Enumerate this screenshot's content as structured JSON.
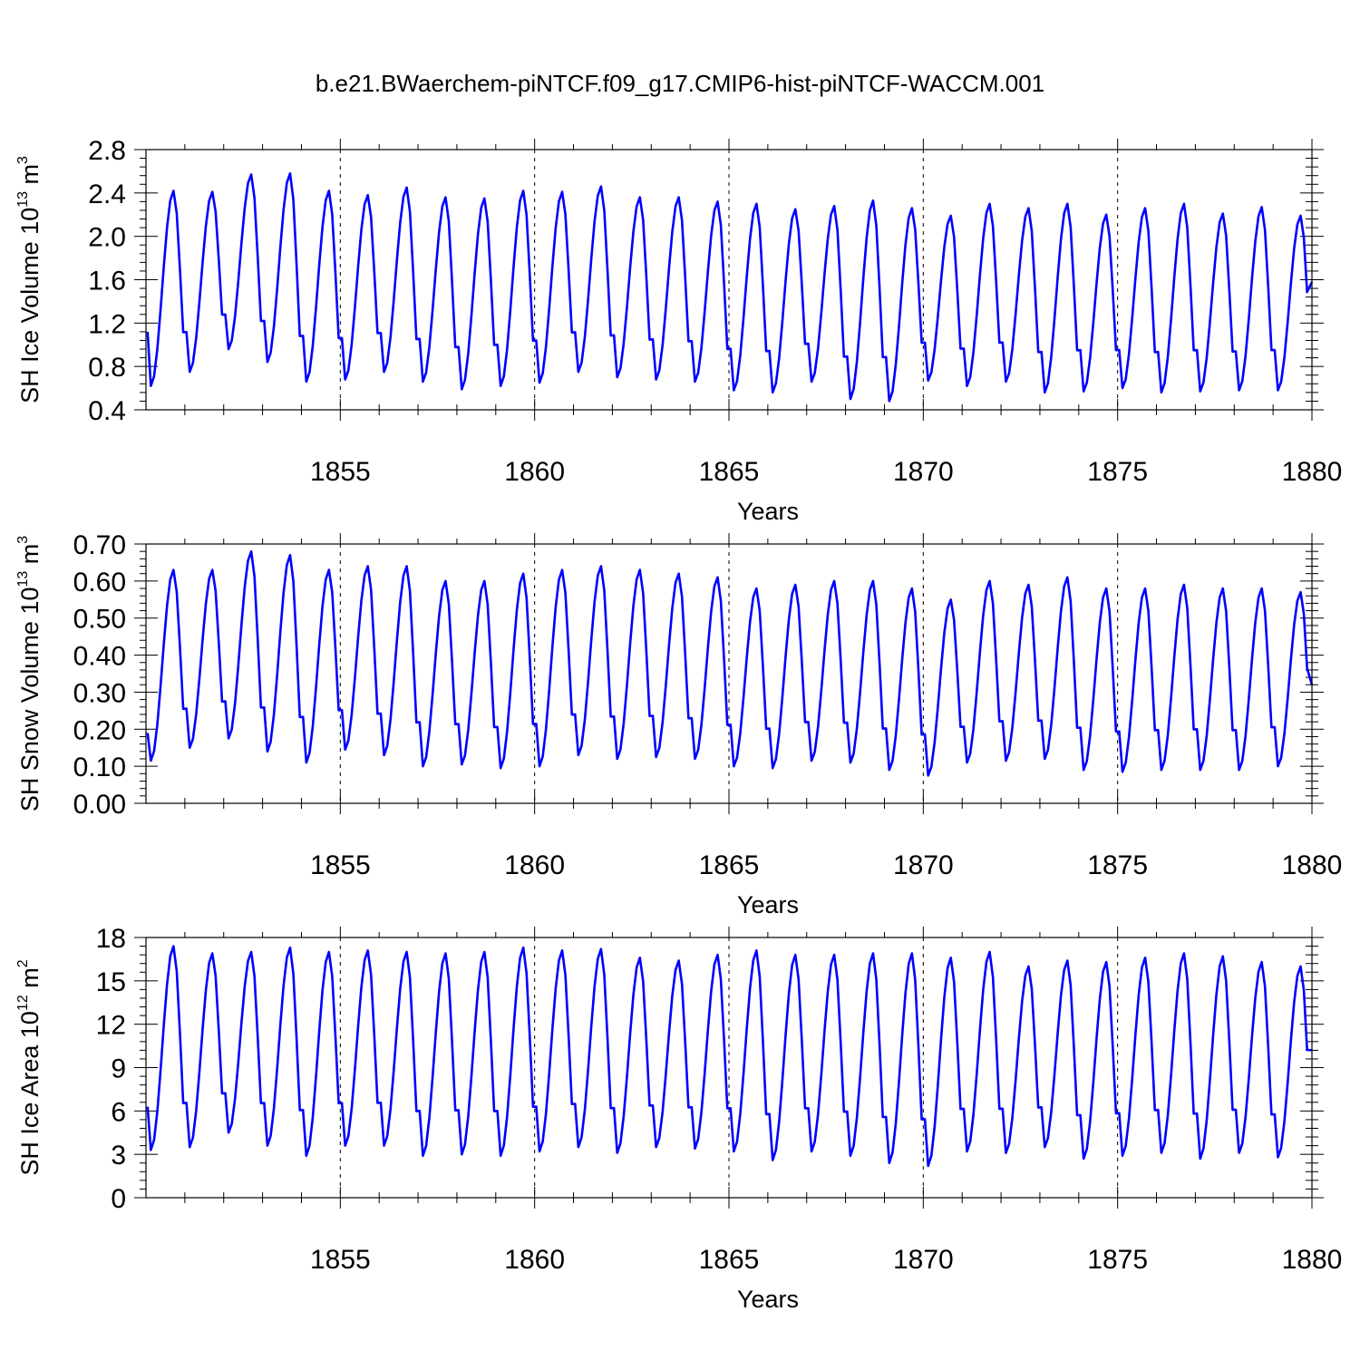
{
  "title": "b.e21.BWaerchem-piNTCF.f09_g17.CMIP6-hist-piNTCF-WACCM.001",
  "colors": {
    "line": "#0000ff",
    "axis": "#000000",
    "grid": "#000000"
  },
  "chart_data": [
    {
      "type": "line",
      "id": "ice-volume",
      "ylabel_main": "SH Ice Volume 10",
      "ylabel_exp": "13",
      "ylabel_unit": " m",
      "ylabel_unit_exp": "3",
      "xlabel": "Years",
      "xlim": [
        1850.0,
        1880.0
      ],
      "ylim": [
        0.4,
        2.8
      ],
      "xticks": [
        1855,
        1860,
        1865,
        1870,
        1875,
        1880
      ],
      "xtick_labels": [
        "1855",
        "1860",
        "1865",
        "1870",
        "1875",
        "1880"
      ],
      "yticks": [
        0.4,
        0.8,
        1.2,
        1.6,
        2.0,
        2.4,
        2.8
      ],
      "ytick_labels": [
        "0.4",
        "0.8",
        "1.2",
        "1.6",
        "2.0",
        "2.4",
        "2.8"
      ],
      "grid_x": [
        1855,
        1860,
        1865,
        1870,
        1875
      ],
      "seasonal": {
        "maxima": [
          2.42,
          2.41,
          2.57,
          2.58,
          2.42,
          2.38,
          2.45,
          2.36,
          2.35,
          2.42,
          2.41,
          2.46,
          2.36,
          2.36,
          2.32,
          2.3,
          2.25,
          2.28,
          2.33,
          2.26,
          2.19,
          2.3,
          2.26,
          2.3,
          2.2,
          2.26,
          2.3,
          2.21,
          2.27,
          2.19
        ],
        "minima": [
          0.62,
          0.75,
          0.96,
          0.84,
          0.66,
          0.68,
          0.75,
          0.66,
          0.59,
          0.62,
          0.65,
          0.75,
          0.7,
          0.68,
          0.66,
          0.58,
          0.56,
          0.66,
          0.5,
          0.48,
          0.67,
          0.62,
          0.66,
          0.56,
          0.57,
          0.6,
          0.56,
          0.57,
          0.58,
          0.58
        ],
        "start_value": 1.12,
        "end_value": 1.58
      }
    },
    {
      "type": "line",
      "id": "snow-volume",
      "ylabel_main": "SH Snow Volume 10",
      "ylabel_exp": "13",
      "ylabel_unit": " m",
      "ylabel_unit_exp": "3",
      "xlabel": "Years",
      "xlim": [
        1850.0,
        1880.0
      ],
      "ylim": [
        0.0,
        0.7
      ],
      "xticks": [
        1855,
        1860,
        1865,
        1870,
        1875,
        1880
      ],
      "xtick_labels": [
        "1855",
        "1860",
        "1865",
        "1870",
        "1875",
        "1880"
      ],
      "yticks": [
        0.0,
        0.1,
        0.2,
        0.3,
        0.4,
        0.5,
        0.6,
        0.7
      ],
      "ytick_labels": [
        "0.00",
        "0.10",
        "0.20",
        "0.30",
        "0.40",
        "0.50",
        "0.60",
        "0.70"
      ],
      "grid_x": [
        1855,
        1860,
        1865,
        1870,
        1875
      ],
      "seasonal": {
        "maxima": [
          0.63,
          0.63,
          0.68,
          0.67,
          0.63,
          0.64,
          0.64,
          0.6,
          0.6,
          0.62,
          0.63,
          0.64,
          0.63,
          0.62,
          0.61,
          0.58,
          0.59,
          0.6,
          0.6,
          0.58,
          0.55,
          0.6,
          0.59,
          0.61,
          0.58,
          0.58,
          0.59,
          0.58,
          0.58,
          0.57
        ],
        "minima": [
          0.115,
          0.15,
          0.175,
          0.14,
          0.11,
          0.145,
          0.13,
          0.1,
          0.105,
          0.095,
          0.1,
          0.13,
          0.12,
          0.125,
          0.12,
          0.1,
          0.095,
          0.115,
          0.11,
          0.09,
          0.075,
          0.11,
          0.115,
          0.12,
          0.09,
          0.085,
          0.09,
          0.09,
          0.09,
          0.1
        ],
        "start_value": 0.19,
        "end_value": 0.32
      }
    },
    {
      "type": "line",
      "id": "ice-area",
      "ylabel_main": "SH Ice Area 10",
      "ylabel_exp": "12",
      "ylabel_unit": " m",
      "ylabel_unit_exp": "2",
      "xlabel": "Years",
      "xlim": [
        1850.0,
        1880.0
      ],
      "ylim": [
        0,
        18
      ],
      "xticks": [
        1855,
        1860,
        1865,
        1870,
        1875,
        1880
      ],
      "xtick_labels": [
        "1855",
        "1860",
        "1865",
        "1870",
        "1875",
        "1880"
      ],
      "yticks": [
        0,
        3,
        6,
        9,
        12,
        15,
        18
      ],
      "ytick_labels": [
        "0",
        "3",
        "6",
        "9",
        "12",
        "15",
        "18"
      ],
      "grid_x": [
        1855,
        1860,
        1865,
        1870,
        1875
      ],
      "seasonal": {
        "maxima": [
          17.4,
          16.9,
          17.0,
          17.3,
          17.0,
          17.1,
          17.0,
          16.9,
          17.0,
          17.3,
          17.1,
          17.2,
          16.6,
          16.4,
          16.8,
          17.1,
          16.8,
          16.8,
          16.9,
          16.9,
          16.6,
          17.0,
          16.0,
          16.4,
          16.3,
          16.6,
          16.9,
          16.7,
          16.3,
          16.0
        ],
        "minima": [
          3.3,
          3.5,
          4.5,
          3.6,
          2.9,
          3.6,
          3.6,
          2.9,
          3.0,
          2.9,
          3.2,
          3.5,
          3.1,
          3.5,
          3.4,
          3.2,
          2.6,
          3.2,
          2.9,
          2.4,
          2.2,
          3.2,
          3.1,
          3.5,
          2.7,
          2.9,
          3.1,
          2.7,
          3.1,
          2.8
        ],
        "start_value": 6.3,
        "end_value": 10.2
      }
    }
  ]
}
